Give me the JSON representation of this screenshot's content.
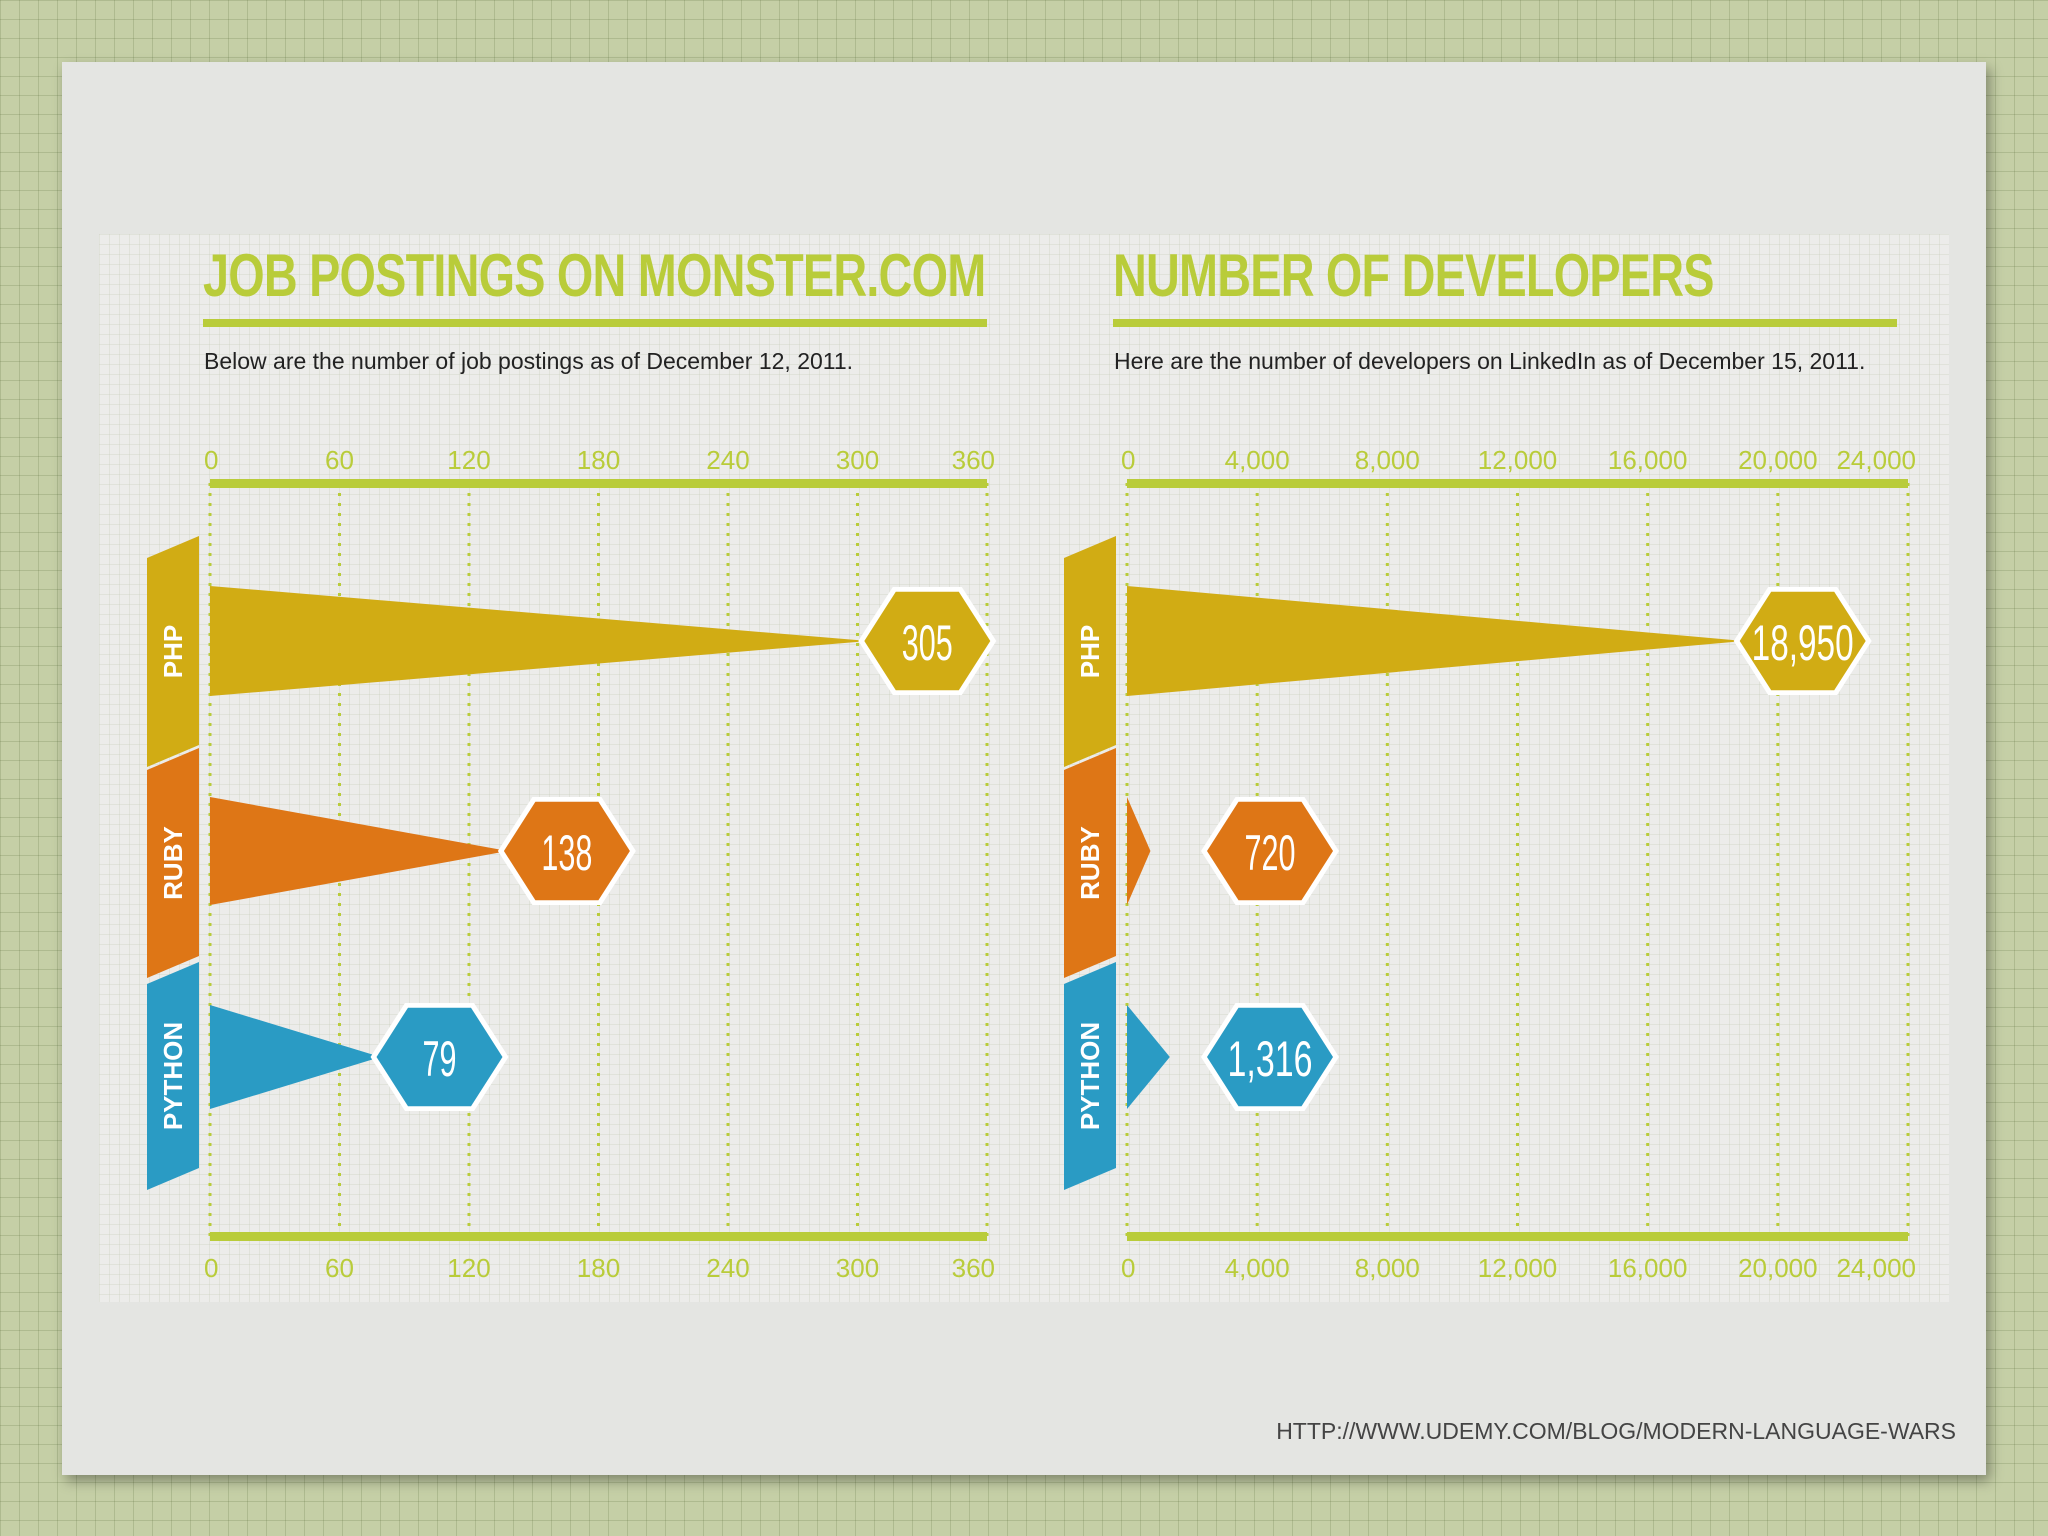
{
  "charts": [
    {
      "title": "JOB POSTINGS ON MONSTER.COM",
      "subtitle": "Below are the number of job postings as of December 12, 2011."
    },
    {
      "title": "NUMBER OF DEVELOPERS",
      "subtitle": "Here are the number of developers on LinkedIn as of December 15, 2011."
    }
  ],
  "source": "HTTP://WWW.UDEMY.COM/BLOG/MODERN-LANGUAGE-WARS",
  "colors": {
    "php": "#d1ac14",
    "ruby": "#de7616",
    "python": "#2a9bc4",
    "accent": "#b9cc3a"
  },
  "chart_data": [
    {
      "type": "bar",
      "title": "JOB POSTINGS ON MONSTER.COM",
      "subtitle": "Below are the number of job postings as of December 12, 2011.",
      "categories": [
        "PHP",
        "RUBY",
        "PYTHON"
      ],
      "values": [
        305,
        138,
        79
      ],
      "value_labels": [
        "305",
        "138",
        "79"
      ],
      "ticks": [
        "0",
        "60",
        "120",
        "180",
        "240",
        "300",
        "360"
      ],
      "xlim": [
        0,
        360
      ],
      "grid": true
    },
    {
      "type": "bar",
      "title": "NUMBER OF DEVELOPERS",
      "subtitle": "Here are the number of developers on LinkedIn as of December 15, 2011.",
      "categories": [
        "PHP",
        "RUBY",
        "PYTHON"
      ],
      "values": [
        18950,
        720,
        1316
      ],
      "value_labels": [
        "18,950",
        "720",
        "1,316"
      ],
      "ticks": [
        "0",
        "4,000",
        "8,000",
        "12,000",
        "16,000",
        "20,000",
        "24,000"
      ],
      "xlim": [
        0,
        24000
      ],
      "grid": true
    }
  ]
}
